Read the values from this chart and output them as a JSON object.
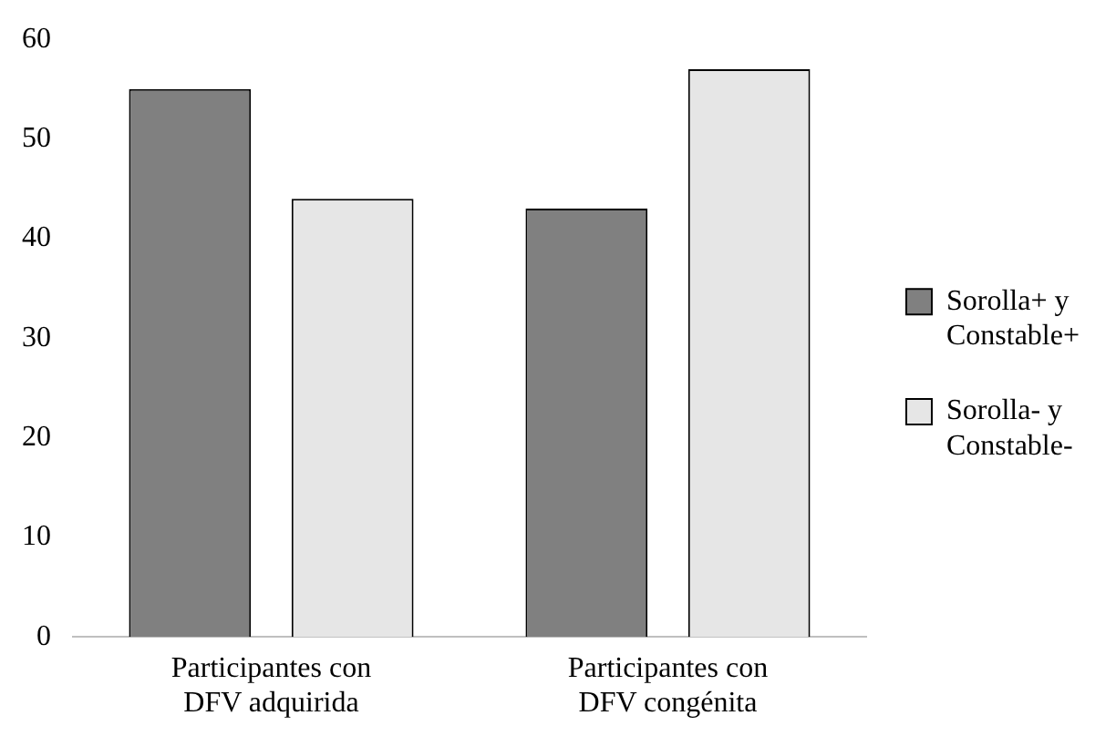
{
  "chart_data": {
    "type": "bar",
    "categories": [
      "Participantes con DFV adquirida",
      "Participantes con DFV congénita"
    ],
    "series": [
      {
        "name": "Sorolla+ y Constable+",
        "color": "#808080",
        "values": [
          55,
          43
        ]
      },
      {
        "name": "Sorolla- y Constable-",
        "color": "#e6e6e6",
        "values": [
          44,
          57
        ]
      }
    ],
    "ylim": [
      0,
      60
    ],
    "yticks": [
      0,
      10,
      20,
      30,
      40,
      50,
      60
    ],
    "grid": false,
    "legend": "right"
  }
}
